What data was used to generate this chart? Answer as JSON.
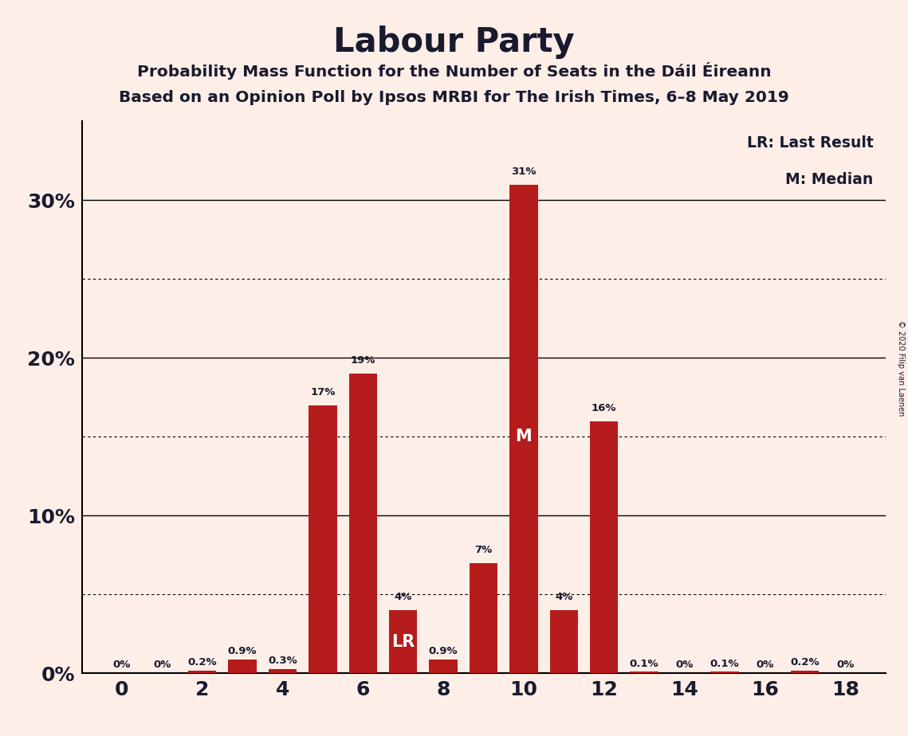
{
  "title": "Labour Party",
  "subtitle1": "Probability Mass Function for the Number of Seats in the Dáil Éireann",
  "subtitle2": "Based on an Opinion Poll by Ipsos MRBI for The Irish Times, 6–8 May 2019",
  "copyright": "© 2020 Filip van Laenen",
  "legend_lr": "LR: Last Result",
  "legend_m": "M: Median",
  "seats": [
    0,
    1,
    2,
    3,
    4,
    5,
    6,
    7,
    8,
    9,
    10,
    11,
    12,
    13,
    14,
    15,
    16,
    17,
    18
  ],
  "values": [
    0.0,
    0.0,
    0.2,
    0.9,
    0.3,
    17.0,
    19.0,
    4.0,
    0.9,
    7.0,
    31.0,
    4.0,
    16.0,
    0.1,
    0.0,
    0.1,
    0.0,
    0.2,
    0.0
  ],
  "labels": [
    "0%",
    "0%",
    "0.2%",
    "0.9%",
    "0.3%",
    "17%",
    "19%",
    "4%",
    "0.9%",
    "7%",
    "31%",
    "4%",
    "16%",
    "0.1%",
    "0%",
    "0.1%",
    "0%",
    "0.2%",
    "0%"
  ],
  "bar_color": "#b71c1c",
  "background_color": "#fdeee8",
  "text_color": "#1a1a2e",
  "lr_seat": 7,
  "median_seat": 10,
  "ylim": [
    0,
    35
  ],
  "solid_gridlines": [
    10,
    20,
    30
  ],
  "dotted_gridlines": [
    5,
    15,
    25
  ],
  "ytick_labels": [
    "0%",
    "10%",
    "20%",
    "30%"
  ],
  "ytick_values": [
    0,
    10,
    20,
    30
  ],
  "xtick_values": [
    0,
    2,
    4,
    6,
    8,
    10,
    12,
    14,
    16,
    18
  ],
  "bar_width": 0.7
}
